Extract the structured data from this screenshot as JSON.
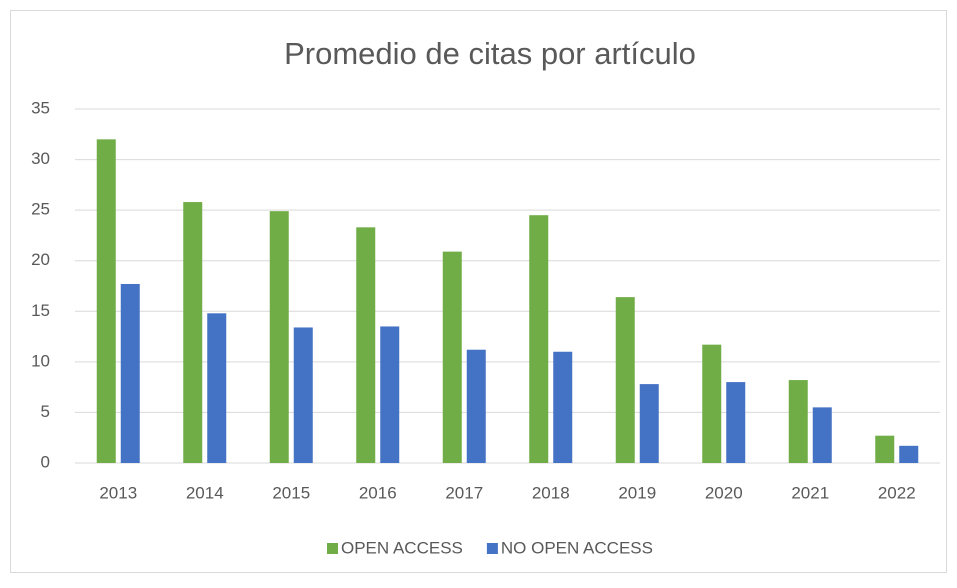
{
  "chart_data": {
    "type": "bar",
    "title": "Promedio de citas por artículo",
    "categories": [
      "2013",
      "2014",
      "2015",
      "2016",
      "2017",
      "2018",
      "2019",
      "2020",
      "2021",
      "2022"
    ],
    "series": [
      {
        "name": "OPEN ACCESS",
        "color": "#70ad47",
        "values": [
          32,
          25.8,
          24.9,
          23.3,
          20.9,
          24.5,
          16.4,
          11.7,
          8.2,
          2.7
        ]
      },
      {
        "name": "NO OPEN ACCESS",
        "color": "#4472c4",
        "values": [
          17.7,
          14.8,
          13.4,
          13.5,
          11.2,
          11.0,
          7.8,
          8.0,
          5.5,
          1.7
        ]
      }
    ],
    "ylim": [
      0,
      35
    ],
    "yticks": [
      0,
      5,
      10,
      15,
      20,
      25,
      30,
      35
    ],
    "grid": true,
    "legend": "bottom"
  }
}
